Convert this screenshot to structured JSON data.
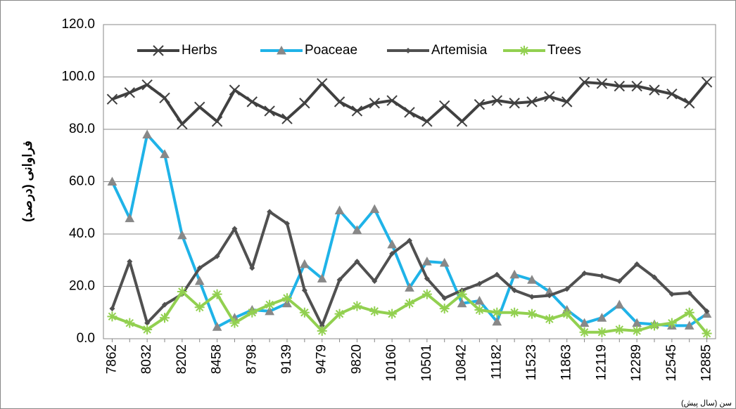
{
  "chart_data": {
    "type": "line",
    "y_label": "فراوانی (درصد)",
    "x_label": "سن (سال پیش)",
    "categories": [
      "7862",
      null,
      "8032",
      null,
      "8202",
      null,
      "8458",
      null,
      "8798",
      null,
      "9139",
      null,
      "9479",
      null,
      "9820",
      null,
      "10160",
      null,
      "10501",
      null,
      "10842",
      null,
      "11182",
      null,
      "11523",
      null,
      "11863",
      null,
      "12119",
      null,
      "12289",
      null,
      "12545",
      null,
      "12885"
    ],
    "series": [
      {
        "name": "Herbs",
        "color": "#404040",
        "marker": "x",
        "values": [
          91.5,
          94,
          97,
          92,
          82,
          88.5,
          83,
          95,
          90.5,
          87,
          84,
          90,
          97.5,
          90.5,
          87,
          90,
          91,
          86.5,
          83,
          89,
          83,
          89.5,
          91,
          90,
          90.5,
          92.5,
          90.5,
          98,
          97.5,
          96.5,
          96.5,
          95,
          93.5,
          90,
          98
        ]
      },
      {
        "name": "Poaceae",
        "color": "#1fb3e8",
        "marker": "triangle",
        "values": [
          60,
          46,
          78,
          70.5,
          39.5,
          22,
          4.5,
          8,
          11,
          10.5,
          13.5,
          28.5,
          23,
          49,
          41.5,
          49.5,
          36,
          19.5,
          29.5,
          29,
          13.5,
          14.5,
          6.5,
          24.5,
          22.5,
          18,
          11,
          6,
          8,
          13,
          6,
          5.5,
          5,
          5,
          9.5
        ]
      },
      {
        "name": "Artemisia",
        "color": "#505050",
        "marker": "diamond",
        "values": [
          11.5,
          29.5,
          6,
          13,
          17,
          27,
          31.5,
          42,
          27,
          48.5,
          44,
          18.5,
          5,
          22.5,
          29.5,
          22,
          32.5,
          37.5,
          23,
          15.5,
          18.5,
          21,
          24.5,
          18.5,
          16,
          16.5,
          19,
          25,
          24,
          22,
          28.5,
          23.5,
          17,
          17.5,
          10.5
        ]
      },
      {
        "name": "Trees",
        "color": "#92d050",
        "marker": "star",
        "values": [
          8.5,
          6,
          3.5,
          8,
          18,
          12,
          17,
          6,
          10,
          13,
          15.5,
          10,
          3,
          9.5,
          12.5,
          10.5,
          9.5,
          13.5,
          17,
          11.5,
          17,
          11,
          10,
          10,
          9.5,
          7.5,
          9.5,
          2.5,
          2.5,
          3.5,
          3,
          5,
          6,
          10,
          2
        ]
      }
    ],
    "ylim": [
      0,
      120
    ],
    "yticks": [
      {
        "value": 0,
        "label": "0.0"
      },
      {
        "value": 20,
        "label": "20.0"
      },
      {
        "value": 40,
        "label": "40.0"
      },
      {
        "value": 60,
        "label": "60.0"
      },
      {
        "value": 80,
        "label": "80.0"
      },
      {
        "value": 100,
        "label": "100.0"
      },
      {
        "value": 120,
        "label": "120.0"
      }
    ],
    "grid": true,
    "legend": "top"
  }
}
